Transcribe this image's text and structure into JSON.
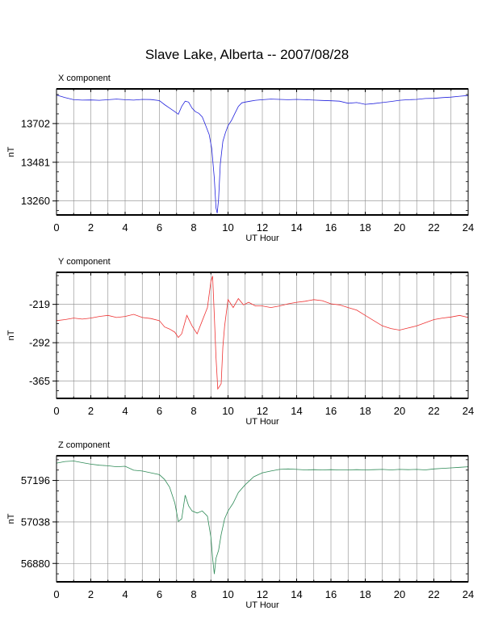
{
  "title": "Slave Lake, Alberta -- 2007/08/28",
  "chart_data": [
    {
      "type": "line",
      "panel_label": "X component",
      "xlabel": "UT Hour",
      "ylabel": "nT",
      "xlim": [
        0,
        24
      ],
      "ylim": [
        13180,
        13900
      ],
      "x_ticks": [
        0,
        2,
        4,
        6,
        8,
        10,
        12,
        14,
        16,
        18,
        20,
        22,
        24
      ],
      "y_ticks": [
        13260,
        13481,
        13702
      ],
      "grid": true,
      "color": "#2222dd",
      "x": [
        0,
        0.5,
        1,
        1.5,
        2,
        2.5,
        3,
        3.5,
        4,
        4.5,
        5,
        5.5,
        6,
        6.3,
        6.6,
        6.9,
        7.1,
        7.3,
        7.5,
        7.7,
        7.9,
        8.1,
        8.3,
        8.5,
        8.7,
        8.9,
        9.05,
        9.2,
        9.3,
        9.37,
        9.45,
        9.55,
        9.7,
        9.85,
        10,
        10.2,
        10.4,
        10.6,
        10.8,
        11,
        11.3,
        11.6,
        12,
        12.5,
        13,
        13.5,
        14,
        14.5,
        15,
        15.5,
        16,
        16.5,
        17,
        17.5,
        18,
        18.5,
        19,
        19.5,
        20,
        20.5,
        21,
        21.5,
        22,
        22.5,
        23,
        23.5,
        24
      ],
      "y": [
        13865,
        13850,
        13838,
        13836,
        13837,
        13835,
        13838,
        13842,
        13838,
        13836,
        13840,
        13839,
        13833,
        13810,
        13790,
        13770,
        13755,
        13800,
        13830,
        13825,
        13790,
        13770,
        13760,
        13740,
        13690,
        13640,
        13560,
        13390,
        13220,
        13190,
        13270,
        13470,
        13600,
        13650,
        13690,
        13720,
        13760,
        13800,
        13820,
        13825,
        13830,
        13835,
        13838,
        13842,
        13840,
        13838,
        13840,
        13838,
        13836,
        13834,
        13832,
        13830,
        13818,
        13822,
        13812,
        13816,
        13822,
        13828,
        13835,
        13838,
        13840,
        13845,
        13846,
        13850,
        13853,
        13858,
        13862
      ]
    },
    {
      "type": "line",
      "panel_label": "Y component",
      "xlabel": "UT Hour",
      "ylabel": "nT",
      "xlim": [
        0,
        24
      ],
      "ylim": [
        -398,
        -158
      ],
      "x_ticks": [
        0,
        2,
        4,
        6,
        8,
        10,
        12,
        14,
        16,
        18,
        20,
        22,
        24
      ],
      "y_ticks": [
        -219,
        -292,
        -365
      ],
      "grid": true,
      "color": "#ee3333",
      "x": [
        0,
        0.5,
        1,
        1.5,
        2,
        2.5,
        3,
        3.5,
        4,
        4.5,
        5,
        5.5,
        6,
        6.3,
        6.6,
        6.9,
        7.1,
        7.3,
        7.6,
        7.9,
        8.2,
        8.5,
        8.8,
        9.0,
        9.1,
        9.2,
        9.3,
        9.4,
        9.5,
        9.6,
        9.7,
        9.8,
        10,
        10.3,
        10.6,
        10.9,
        11.2,
        11.6,
        12,
        12.5,
        13,
        13.5,
        14,
        14.5,
        15,
        15.5,
        16,
        16.5,
        17,
        17.5,
        18,
        18.5,
        19,
        19.5,
        20,
        20.5,
        21,
        21.5,
        22,
        22.5,
        23,
        23.5,
        24
      ],
      "y": [
        -250,
        -248,
        -245,
        -247,
        -245,
        -242,
        -240,
        -244,
        -242,
        -238,
        -244,
        -246,
        -250,
        -262,
        -266,
        -272,
        -282,
        -275,
        -240,
        -260,
        -275,
        -250,
        -225,
        -175,
        -165,
        -240,
        -320,
        -380,
        -375,
        -370,
        -300,
        -260,
        -210,
        -225,
        -208,
        -220,
        -215,
        -222,
        -222,
        -225,
        -222,
        -218,
        -215,
        -213,
        -210,
        -212,
        -218,
        -220,
        -225,
        -230,
        -240,
        -250,
        -260,
        -265,
        -268,
        -264,
        -260,
        -254,
        -248,
        -245,
        -243,
        -240,
        -244
      ]
    },
    {
      "type": "line",
      "panel_label": "Z component",
      "xlabel": "UT Hour",
      "ylabel": "nT",
      "xlim": [
        0,
        24
      ],
      "ylim": [
        56810,
        57290
      ],
      "x_ticks": [
        0,
        2,
        4,
        6,
        8,
        10,
        12,
        14,
        16,
        18,
        20,
        22,
        24
      ],
      "y_ticks": [
        56880,
        57038,
        57196
      ],
      "grid": true,
      "color": "#2e8b57",
      "x": [
        0,
        0.5,
        1,
        1.5,
        2,
        2.5,
        3,
        3.5,
        4,
        4.5,
        5,
        5.5,
        6,
        6.3,
        6.6,
        6.9,
        7.1,
        7.3,
        7.5,
        7.7,
        7.9,
        8.2,
        8.5,
        8.8,
        9.0,
        9.1,
        9.2,
        9.3,
        9.45,
        9.6,
        9.8,
        10,
        10.3,
        10.6,
        11,
        11.5,
        12,
        12.5,
        13,
        13.5,
        14,
        14.5,
        15,
        15.5,
        16,
        16.5,
        17,
        17.5,
        18,
        18.5,
        19,
        19.5,
        20,
        20.5,
        21,
        21.5,
        22,
        22.5,
        23,
        23.5,
        24
      ],
      "y": [
        57262,
        57268,
        57270,
        57264,
        57258,
        57254,
        57252,
        57248,
        57250,
        57235,
        57232,
        57225,
        57218,
        57200,
        57170,
        57110,
        57040,
        57050,
        57140,
        57100,
        57080,
        57072,
        57080,
        57060,
        56980,
        56900,
        56840,
        56900,
        56930,
        56990,
        57050,
        57080,
        57110,
        57150,
        57180,
        57210,
        57225,
        57232,
        57238,
        57240,
        57238,
        57236,
        57237,
        57236,
        57237,
        57236,
        57236,
        57237,
        57236,
        57237,
        57238,
        57236,
        57238,
        57237,
        57238,
        57236,
        57240,
        57242,
        57244,
        57246,
        57248
      ]
    }
  ]
}
